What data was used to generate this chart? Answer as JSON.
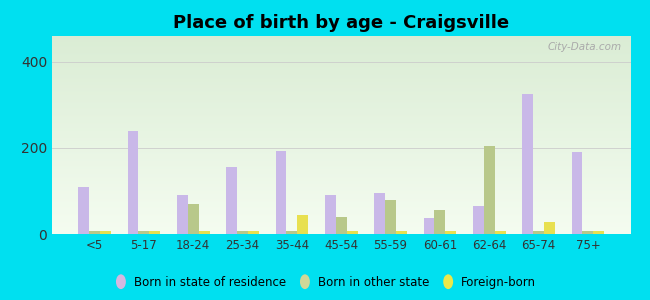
{
  "title": "Place of birth by age - Craigsville",
  "categories": [
    "<5",
    "5-17",
    "18-24",
    "25-34",
    "35-44",
    "45-54",
    "55-59",
    "60-61",
    "62-64",
    "65-74",
    "75+"
  ],
  "born_in_state": [
    110,
    240,
    90,
    155,
    193,
    90,
    95,
    38,
    65,
    325,
    190
  ],
  "born_other_state": [
    6,
    6,
    70,
    8,
    8,
    40,
    80,
    55,
    205,
    6,
    6
  ],
  "foreign_born": [
    6,
    6,
    8,
    8,
    45,
    6,
    6,
    6,
    6,
    28,
    8
  ],
  "bar_colors": {
    "born_in_state": "#c9b8e8",
    "born_other_state": "#b8c88a",
    "foreign_born": "#e8e050"
  },
  "legend_colors": {
    "born_in_state": "#d4b8e0",
    "born_other_state": "#d0d898",
    "foreign_born": "#ece84a"
  },
  "legend_labels": [
    "Born in state of residence",
    "Born in other state",
    "Foreign-born"
  ],
  "ylim": [
    0,
    460
  ],
  "yticks": [
    0,
    200,
    400
  ],
  "bg_top_color": "#daecd4",
  "bg_bottom_color": "#f4fcf0",
  "outer_bg": "#00e0f0",
  "watermark": "City-Data.com",
  "bar_width": 0.22,
  "title_fontsize": 13
}
